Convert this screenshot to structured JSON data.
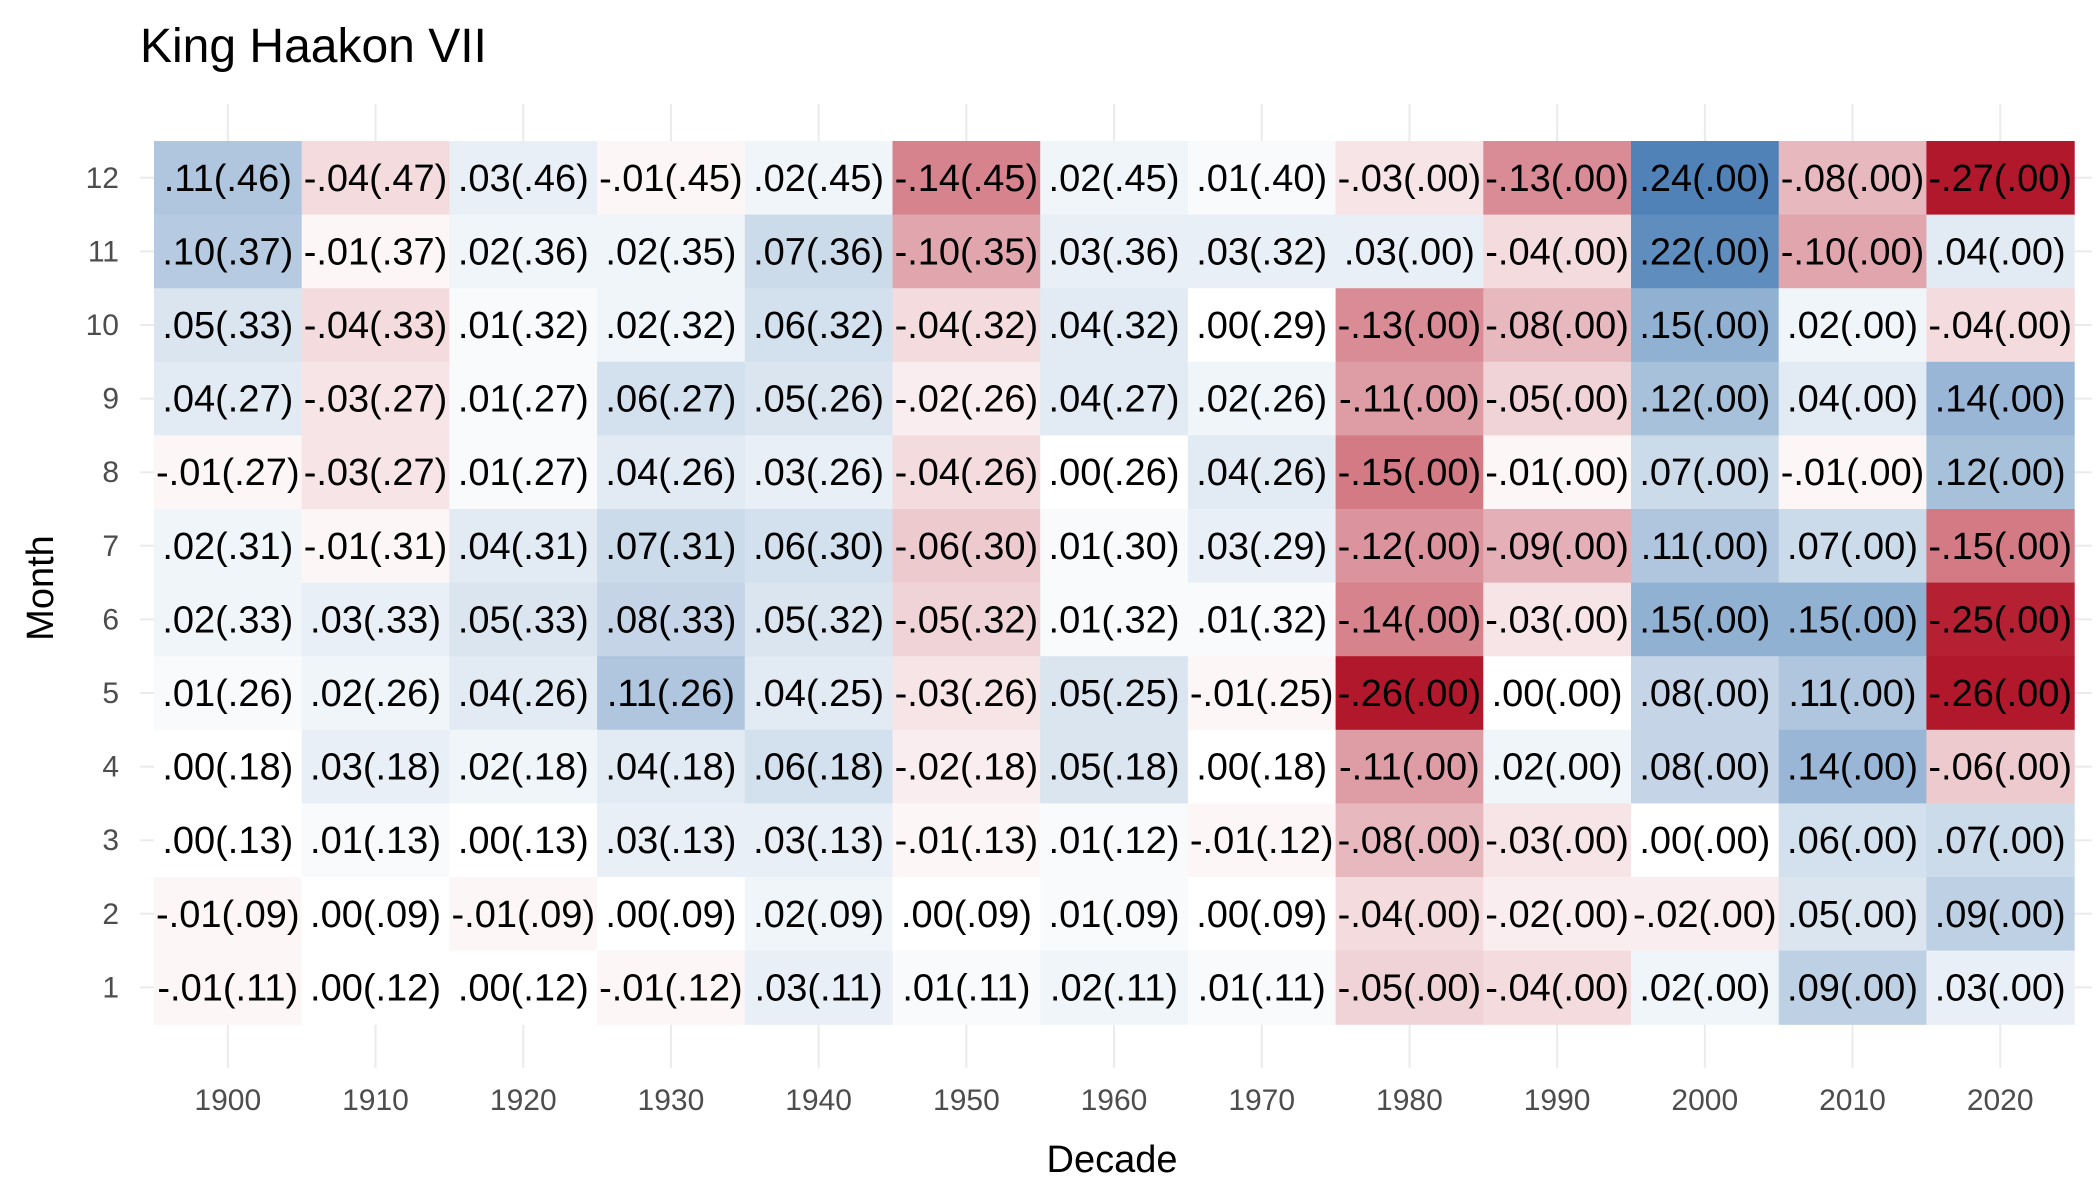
{
  "chart_data": {
    "type": "heatmap",
    "title": "King Haakon VII",
    "xlabel": "Decade",
    "ylabel": "Month",
    "x_categories": [
      "1900",
      "1910",
      "1920",
      "1930",
      "1940",
      "1950",
      "1960",
      "1970",
      "1980",
      "1990",
      "2000",
      "2010",
      "2020"
    ],
    "y_categories": [
      "1",
      "2",
      "3",
      "4",
      "5",
      "6",
      "7",
      "8",
      "9",
      "10",
      "11",
      "12"
    ],
    "color_scale": {
      "negative": "#b2182b",
      "zero": "#ffffff",
      "positive": "#4178b2",
      "limit": 0.26
    },
    "grid": true,
    "cells": [
      {
        "month": "12",
        "values": [
          0.11,
          -0.04,
          0.03,
          -0.01,
          0.02,
          -0.14,
          0.02,
          0.01,
          -0.03,
          -0.13,
          0.24,
          -0.08,
          -0.27
        ],
        "labels": [
          ".11(.46)",
          "-.04(.47)",
          ".03(.46)",
          "-.01(.45)",
          ".02(.45)",
          "-.14(.45)",
          ".02(.45)",
          ".01(.40)",
          "-.03(.00)",
          "-.13(.00)",
          ".24(.00)",
          "-.08(.00)",
          "-.27(.00)"
        ]
      },
      {
        "month": "11",
        "values": [
          0.1,
          -0.01,
          0.02,
          0.02,
          0.07,
          -0.1,
          0.03,
          0.03,
          0.03,
          -0.04,
          0.22,
          -0.1,
          0.04
        ],
        "labels": [
          ".10(.37)",
          "-.01(.37)",
          ".02(.36)",
          ".02(.35)",
          ".07(.36)",
          "-.10(.35)",
          ".03(.36)",
          ".03(.32)",
          ".03(.00)",
          "-.04(.00)",
          ".22(.00)",
          "-.10(.00)",
          ".04(.00)"
        ]
      },
      {
        "month": "10",
        "values": [
          0.05,
          -0.04,
          0.01,
          0.02,
          0.06,
          -0.04,
          0.04,
          0.0,
          -0.13,
          -0.08,
          0.15,
          0.02,
          -0.04
        ],
        "labels": [
          ".05(.33)",
          "-.04(.33)",
          ".01(.32)",
          ".02(.32)",
          ".06(.32)",
          "-.04(.32)",
          ".04(.32)",
          ".00(.29)",
          "-.13(.00)",
          "-.08(.00)",
          ".15(.00)",
          ".02(.00)",
          "-.04(.00)"
        ]
      },
      {
        "month": "9",
        "values": [
          0.04,
          -0.03,
          0.01,
          0.06,
          0.05,
          -0.02,
          0.04,
          0.02,
          -0.11,
          -0.05,
          0.12,
          0.04,
          0.14
        ],
        "labels": [
          ".04(.27)",
          "-.03(.27)",
          ".01(.27)",
          ".06(.27)",
          ".05(.26)",
          "-.02(.26)",
          ".04(.27)",
          ".02(.26)",
          "-.11(.00)",
          "-.05(.00)",
          ".12(.00)",
          ".04(.00)",
          ".14(.00)"
        ]
      },
      {
        "month": "8",
        "values": [
          -0.01,
          -0.03,
          0.01,
          0.04,
          0.03,
          -0.04,
          0.0,
          0.04,
          -0.15,
          -0.01,
          0.07,
          -0.01,
          0.12
        ],
        "labels": [
          "-.01(.27)",
          "-.03(.27)",
          ".01(.27)",
          ".04(.26)",
          ".03(.26)",
          "-.04(.26)",
          ".00(.26)",
          ".04(.26)",
          "-.15(.00)",
          "-.01(.00)",
          ".07(.00)",
          "-.01(.00)",
          ".12(.00)"
        ]
      },
      {
        "month": "7",
        "values": [
          0.02,
          -0.01,
          0.04,
          0.07,
          0.06,
          -0.06,
          0.01,
          0.03,
          -0.12,
          -0.09,
          0.11,
          0.07,
          -0.15
        ],
        "labels": [
          ".02(.31)",
          "-.01(.31)",
          ".04(.31)",
          ".07(.31)",
          ".06(.30)",
          "-.06(.30)",
          ".01(.30)",
          ".03(.29)",
          "-.12(.00)",
          "-.09(.00)",
          ".11(.00)",
          ".07(.00)",
          "-.15(.00)"
        ]
      },
      {
        "month": "6",
        "values": [
          0.02,
          0.03,
          0.05,
          0.08,
          0.05,
          -0.05,
          0.01,
          0.01,
          -0.14,
          -0.03,
          0.15,
          0.15,
          -0.25
        ],
        "labels": [
          ".02(.33)",
          ".03(.33)",
          ".05(.33)",
          ".08(.33)",
          ".05(.32)",
          "-.05(.32)",
          ".01(.32)",
          ".01(.32)",
          "-.14(.00)",
          "-.03(.00)",
          ".15(.00)",
          ".15(.00)",
          "-.25(.00)"
        ]
      },
      {
        "month": "5",
        "values": [
          0.01,
          0.02,
          0.04,
          0.11,
          0.04,
          -0.03,
          0.05,
          -0.01,
          -0.26,
          0.0,
          0.08,
          0.11,
          -0.26
        ],
        "labels": [
          ".01(.26)",
          ".02(.26)",
          ".04(.26)",
          ".11(.26)",
          ".04(.25)",
          "-.03(.26)",
          ".05(.25)",
          "-.01(.25)",
          "-.26(.00)",
          ".00(.00)",
          ".08(.00)",
          ".11(.00)",
          "-.26(.00)"
        ]
      },
      {
        "month": "4",
        "values": [
          0.0,
          0.03,
          0.02,
          0.04,
          0.06,
          -0.02,
          0.05,
          0.0,
          -0.11,
          0.02,
          0.08,
          0.14,
          -0.06
        ],
        "labels": [
          ".00(.18)",
          ".03(.18)",
          ".02(.18)",
          ".04(.18)",
          ".06(.18)",
          "-.02(.18)",
          ".05(.18)",
          ".00(.18)",
          "-.11(.00)",
          ".02(.00)",
          ".08(.00)",
          ".14(.00)",
          "-.06(.00)"
        ]
      },
      {
        "month": "3",
        "values": [
          0.0,
          0.01,
          0.0,
          0.03,
          0.03,
          -0.01,
          0.01,
          -0.01,
          -0.08,
          -0.03,
          0.0,
          0.06,
          0.07
        ],
        "labels": [
          ".00(.13)",
          ".01(.13)",
          ".00(.13)",
          ".03(.13)",
          ".03(.13)",
          "-.01(.13)",
          ".01(.12)",
          "-.01(.12)",
          "-.08(.00)",
          "-.03(.00)",
          ".00(.00)",
          ".06(.00)",
          ".07(.00)"
        ]
      },
      {
        "month": "2",
        "values": [
          -0.01,
          0.0,
          -0.01,
          0.0,
          0.02,
          0.0,
          0.01,
          0.0,
          -0.04,
          -0.02,
          -0.02,
          0.05,
          0.09
        ],
        "labels": [
          "-.01(.09)",
          ".00(.09)",
          "-.01(.09)",
          ".00(.09)",
          ".02(.09)",
          ".00(.09)",
          ".01(.09)",
          ".00(.09)",
          "-.04(.00)",
          "-.02(.00)",
          "-.02(.00)",
          ".05(.00)",
          ".09(.00)"
        ]
      },
      {
        "month": "1",
        "values": [
          -0.01,
          0.0,
          0.0,
          -0.01,
          0.03,
          0.01,
          0.02,
          0.01,
          -0.05,
          -0.04,
          0.02,
          0.09,
          0.03
        ],
        "labels": [
          "-.01(.11)",
          ".00(.12)",
          ".00(.12)",
          "-.01(.12)",
          ".03(.11)",
          ".01(.11)",
          ".02(.11)",
          ".01(.11)",
          "-.05(.00)",
          "-.04(.00)",
          ".02(.00)",
          ".09(.00)",
          ".03(.00)"
        ]
      }
    ]
  }
}
